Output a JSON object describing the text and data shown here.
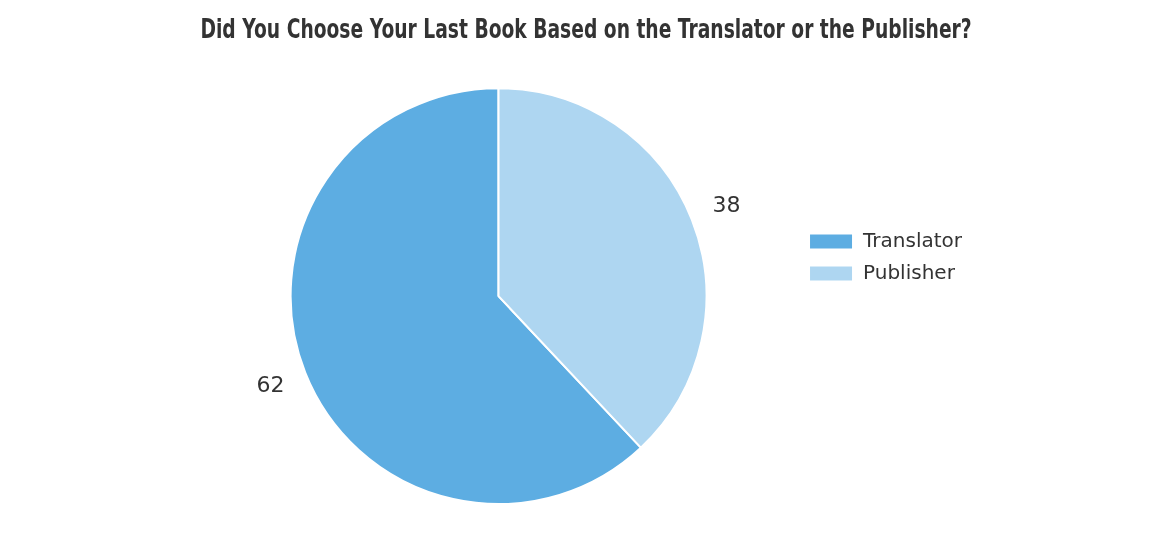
{
  "chart_data": {
    "type": "pie",
    "title": "Did You Choose Your Last Book Based on the Translator or the Publisher?",
    "categories": [
      "Translator",
      "Publisher"
    ],
    "values": [
      62,
      38
    ],
    "colors": [
      "#5dade2",
      "#aed6f1"
    ],
    "data_labels": true,
    "legend": "right"
  }
}
